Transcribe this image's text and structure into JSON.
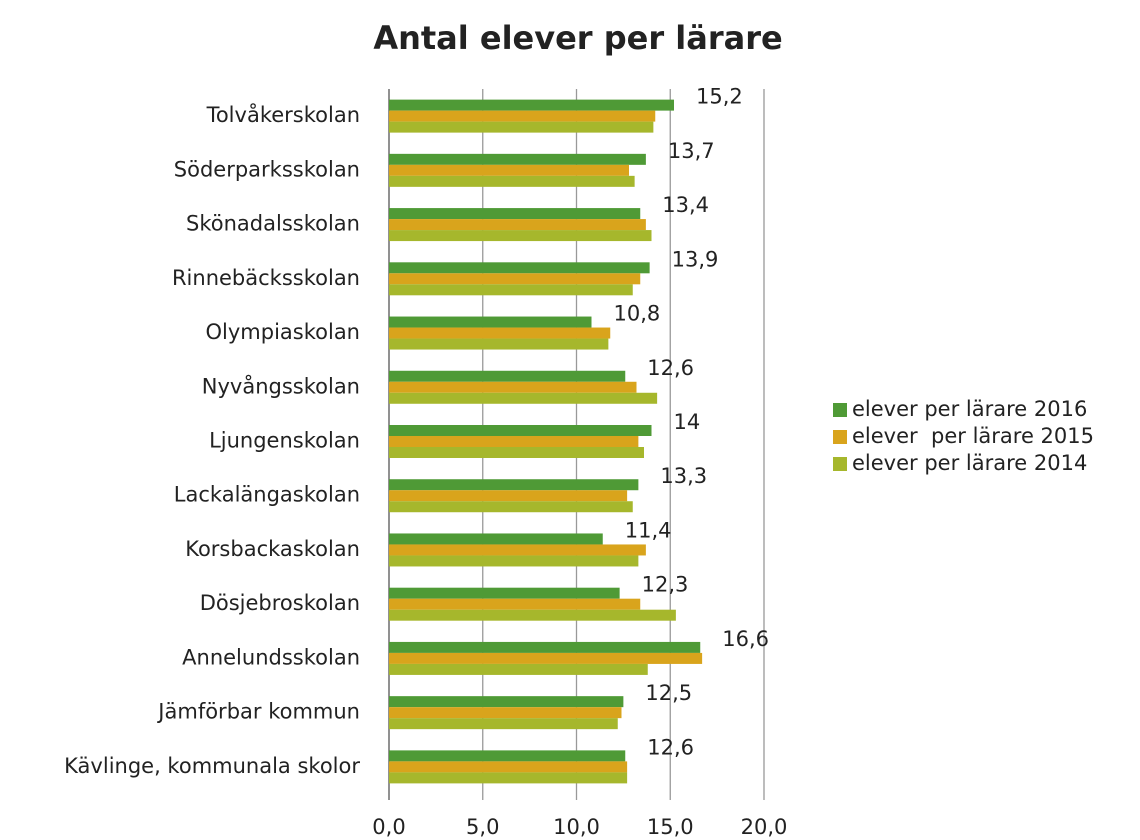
{
  "chart_data": {
    "type": "bar",
    "orientation": "horizontal",
    "title": "Antal elever per lärare",
    "categories": [
      "Tolvåkerskolan",
      "Söderparksskolan",
      "Skönadalsskolan",
      "Rinnebäcksskolan",
      "Olympiaskolan",
      "Nyvångsskolan",
      "Ljungenskolan",
      "Lackalängaskolan",
      "Korsbackaskolan",
      "Dösjebroskolan",
      "Annelundsskolan",
      "Jämförbar kommun",
      "Kävlinge, kommunala skolor"
    ],
    "series": [
      {
        "name": "elever per lärare 2016",
        "color": "#4f9a36",
        "values": [
          15.2,
          13.7,
          13.4,
          13.9,
          10.8,
          12.6,
          14,
          13.3,
          11.4,
          12.3,
          16.6,
          12.5,
          12.6
        ],
        "value_labels": [
          "15,2",
          "13,7",
          "13,4",
          "13,9",
          "10,8",
          "12,6",
          "14",
          "13,3",
          "11,4",
          "12,3",
          "16,6",
          "12,5",
          "12,6"
        ]
      },
      {
        "name": "elever  per lärare 2015",
        "color": "#d9a41c",
        "values": [
          14.2,
          12.8,
          13.7,
          13.4,
          11.8,
          13.2,
          13.3,
          12.7,
          13.7,
          13.4,
          16.7,
          12.4,
          12.7
        ]
      },
      {
        "name": "elever per lärare 2014",
        "color": "#a6b72c",
        "values": [
          14.1,
          13.1,
          14.0,
          13.0,
          11.7,
          14.3,
          13.6,
          13.0,
          13.3,
          15.3,
          13.8,
          12.2,
          12.7
        ]
      }
    ],
    "xlim": [
      0,
      20
    ],
    "xticks": [
      {
        "value": 0,
        "label": "0,0"
      },
      {
        "value": 5,
        "label": "5,0"
      },
      {
        "value": 10,
        "label": "10,0"
      },
      {
        "value": 15,
        "label": "15,0"
      },
      {
        "value": 20,
        "label": "20,0"
      }
    ],
    "grid": true,
    "legend": "right"
  }
}
